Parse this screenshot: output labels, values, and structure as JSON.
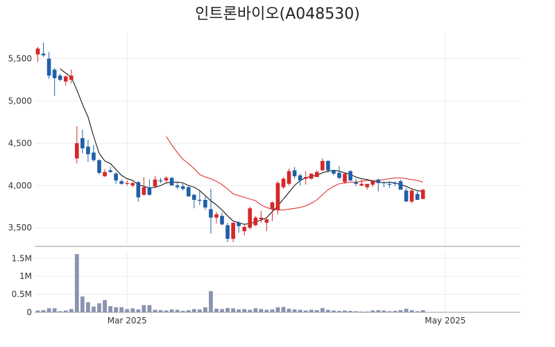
{
  "chart_data": {
    "title": "인트론바이오(A048530)",
    "type": "candlestick",
    "price_axis": {
      "ylim": [
        3280,
        5800
      ],
      "ticks": [
        3500,
        4000,
        4500,
        5000,
        5500
      ],
      "tick_labels": [
        "3,500",
        "4,000",
        "4,500",
        "5,000",
        "5,500"
      ]
    },
    "volume_axis": {
      "ylim": [
        0,
        1700000
      ],
      "ticks": [
        0,
        500000,
        1000000,
        1500000
      ],
      "tick_labels": [
        "0",
        "0.5M",
        "1M",
        "1.5M"
      ]
    },
    "x_axis": {
      "range": [
        0,
        87
      ],
      "ticks": [
        {
          "index": 16,
          "label": "Mar 2025"
        },
        {
          "index": 73,
          "label": "May 2025"
        }
      ]
    },
    "colors": {
      "up": "#d62728",
      "down": "#1f5fa8",
      "ma_short": "#000000",
      "ma_long": "#e02020",
      "volume": "#8a93b0"
    },
    "series": [
      {
        "name": "OHLC",
        "values": [
          [
            5550,
            5640,
            5460,
            5620
          ],
          [
            5560,
            5690,
            5520,
            5540
          ],
          [
            5500,
            5580,
            5260,
            5300
          ],
          [
            5370,
            5390,
            5060,
            5270
          ],
          [
            5300,
            5320,
            5230,
            5250
          ],
          [
            5230,
            5300,
            5180,
            5290
          ],
          [
            5250,
            5370,
            5210,
            5300
          ],
          [
            4320,
            4700,
            4260,
            4500
          ],
          [
            4560,
            4660,
            4380,
            4440
          ],
          [
            4460,
            4540,
            4280,
            4370
          ],
          [
            4390,
            4480,
            4280,
            4300
          ],
          [
            4300,
            4310,
            4130,
            4150
          ],
          [
            4110,
            4190,
            4100,
            4160
          ],
          [
            4180,
            4220,
            4150,
            4160
          ],
          [
            4140,
            4160,
            4020,
            4060
          ],
          [
            4050,
            4070,
            4010,
            4020
          ],
          [
            4020,
            4060,
            4000,
            4030
          ],
          [
            4000,
            4040,
            3980,
            4030
          ],
          [
            4040,
            4050,
            3810,
            3860
          ],
          [
            3890,
            4100,
            3880,
            3980
          ],
          [
            3980,
            4070,
            3880,
            3890
          ],
          [
            3990,
            4110,
            3970,
            4070
          ],
          [
            4060,
            4090,
            4030,
            4050
          ],
          [
            4060,
            4110,
            4020,
            4090
          ],
          [
            4090,
            4100,
            4040,
            4000
          ],
          [
            4000,
            4040,
            3960,
            3980
          ],
          [
            3990,
            4020,
            3940,
            3960
          ],
          [
            3980,
            3990,
            3880,
            3870
          ],
          [
            3890,
            3900,
            3730,
            3830
          ],
          [
            3830,
            3950,
            3770,
            3820
          ],
          [
            3830,
            3870,
            3710,
            3740
          ],
          [
            3720,
            3960,
            3430,
            3620
          ],
          [
            3620,
            3690,
            3550,
            3660
          ],
          [
            3640,
            3680,
            3530,
            3540
          ],
          [
            3530,
            3560,
            3330,
            3370
          ],
          [
            3370,
            3560,
            3330,
            3560
          ],
          [
            3560,
            3580,
            3440,
            3520
          ],
          [
            3460,
            3540,
            3410,
            3510
          ],
          [
            3500,
            3750,
            3480,
            3730
          ],
          [
            3530,
            3640,
            3520,
            3620
          ],
          [
            3600,
            3700,
            3560,
            3620
          ],
          [
            3560,
            3620,
            3460,
            3600
          ],
          [
            3720,
            3810,
            3580,
            3800
          ],
          [
            3710,
            4050,
            3660,
            4030
          ],
          [
            3980,
            4100,
            3960,
            4080
          ],
          [
            4020,
            4200,
            4000,
            4170
          ],
          [
            4180,
            4220,
            4080,
            4110
          ],
          [
            4120,
            4140,
            4000,
            4060
          ],
          [
            4080,
            4170,
            4010,
            4100
          ],
          [
            4080,
            4140,
            4070,
            4140
          ],
          [
            4100,
            4180,
            4100,
            4160
          ],
          [
            4180,
            4320,
            4170,
            4290
          ],
          [
            4290,
            4300,
            4150,
            4180
          ],
          [
            4180,
            4190,
            4120,
            4140
          ],
          [
            4150,
            4230,
            4070,
            4090
          ],
          [
            4040,
            4150,
            4020,
            4140
          ],
          [
            4170,
            4180,
            4050,
            4060
          ],
          [
            4040,
            4080,
            3990,
            4020
          ],
          [
            4000,
            4070,
            3990,
            4020
          ],
          [
            3980,
            4010,
            3950,
            4020
          ],
          [
            4010,
            4050,
            3980,
            4050
          ],
          [
            4070,
            4080,
            3930,
            4030
          ],
          [
            4040,
            4050,
            3980,
            4030
          ],
          [
            4020,
            4050,
            3970,
            4010
          ],
          [
            4030,
            4050,
            3990,
            4020
          ],
          [
            4050,
            4070,
            3960,
            3950
          ],
          [
            3940,
            3970,
            3820,
            3810
          ],
          [
            3810,
            3970,
            3790,
            3940
          ],
          [
            3900,
            3940,
            3830,
            3830
          ],
          [
            3840,
            3960,
            3860,
            3950
          ]
        ]
      },
      {
        "name": "MA5",
        "values": [
          null,
          null,
          null,
          null,
          5380,
          5330,
          5280,
          5130,
          4960,
          4810,
          4580,
          4380,
          4290,
          4260,
          4190,
          4120,
          4080,
          4060,
          4010,
          3990,
          3970,
          3980,
          4000,
          4030,
          4040,
          4040,
          4030,
          4000,
          3980,
          3940,
          3880,
          3820,
          3770,
          3710,
          3640,
          3580,
          3560,
          3540,
          3550,
          3570,
          3590,
          3620,
          3690,
          3760,
          3840,
          3920,
          4000,
          4060,
          4090,
          4110,
          4120,
          4150,
          4170,
          4180,
          4170,
          4150,
          4130,
          4100,
          4080,
          4070,
          4050,
          4040,
          4030,
          4040,
          4030,
          4010,
          3990,
          3960,
          3940,
          3930
        ]
      },
      {
        "name": "MA20",
        "values": [
          null,
          null,
          null,
          null,
          null,
          null,
          null,
          null,
          null,
          null,
          null,
          null,
          null,
          null,
          null,
          null,
          null,
          null,
          null,
          null,
          null,
          null,
          null,
          4580,
          4480,
          4390,
          4310,
          4260,
          4200,
          4130,
          4100,
          4080,
          4050,
          4010,
          3960,
          3900,
          3880,
          3860,
          3840,
          3820,
          3770,
          3740,
          3720,
          3710,
          3710,
          3720,
          3730,
          3740,
          3760,
          3790,
          3830,
          3890,
          3950,
          3990,
          4020,
          4030,
          4040,
          4040,
          4050,
          4060,
          4060,
          4060,
          4070,
          4080,
          4090,
          4090,
          4080,
          4070,
          4060,
          4040
        ]
      },
      {
        "name": "Volume",
        "values": [
          50000,
          60000,
          110000,
          110000,
          30000,
          50000,
          90000,
          1620000,
          440000,
          280000,
          160000,
          250000,
          340000,
          170000,
          140000,
          140000,
          90000,
          110000,
          80000,
          200000,
          200000,
          70000,
          60000,
          50000,
          80000,
          70000,
          40000,
          60000,
          90000,
          80000,
          140000,
          590000,
          100000,
          90000,
          120000,
          110000,
          80000,
          90000,
          70000,
          110000,
          90000,
          70000,
          80000,
          140000,
          150000,
          100000,
          80000,
          70000,
          50000,
          70000,
          60000,
          120000,
          70000,
          50000,
          40000,
          50000,
          40000,
          30000,
          20000,
          20000,
          50000,
          60000,
          50000,
          30000,
          40000,
          60000,
          100000,
          60000,
          30000,
          60000
        ]
      }
    ]
  }
}
